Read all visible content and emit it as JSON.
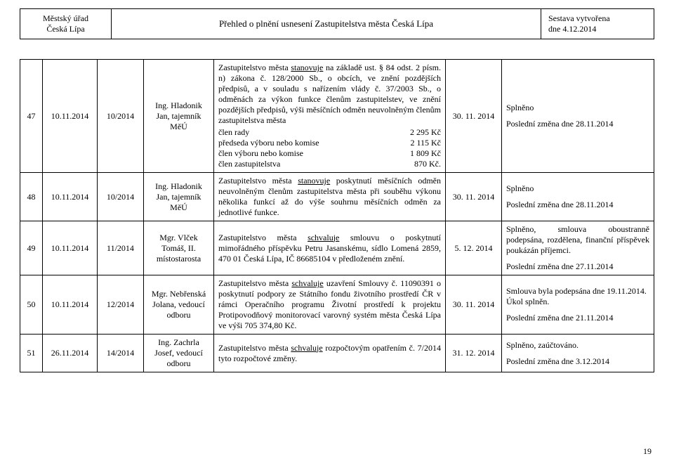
{
  "header": {
    "left_line1": "Městský úřad",
    "left_line2": "Česká Lípa",
    "center": "Přehled o plnění usnesení Zastupitelstva města Česká Lípa",
    "right_line1": "Sestava vytvořena",
    "right_line2": "dne 4.12.2014"
  },
  "page_number": "19",
  "rows": [
    {
      "num": "47",
      "date": "10.11.2014",
      "ref": "10/2014",
      "person": "Ing. Hladonik Jan, tajemník MěÚ",
      "desc": {
        "pre": "Zastupitelstvo města ",
        "u": "stanovuje",
        "post": " na základě ust. § 84 odst. 2 písm. n) zákona č. 128/2000 Sb., o obcích, ve znění pozdějších předpisů, a v souladu s nařízením vlády č. 37/2003 Sb., o odměnách za výkon funkce členům zastupitelstev, ve znění pozdějších předpisů, výši měsíčních odměn neuvolněným členům zastupitelstva města",
        "amounts": [
          {
            "lbl": "člen rady",
            "val": "2 295 Kč"
          },
          {
            "lbl": "předseda výboru nebo komise",
            "val": "2 115 Kč"
          },
          {
            "lbl": "člen výboru nebo komise",
            "val": "1 809 Kč"
          },
          {
            "lbl": "člen zastupitelstva",
            "val": "870 Kč."
          }
        ]
      },
      "term": "30. 11. 2014",
      "status_a": "Splněno",
      "status_b": "Poslední změna dne 28.11.2014"
    },
    {
      "num": "48",
      "date": "10.11.2014",
      "ref": "10/2014",
      "person": "Ing. Hladonik Jan, tajemník MěÚ",
      "desc": {
        "pre": "Zastupitelstvo města ",
        "u": "stanovuje",
        "post": " poskytnutí měsíčních odměn neuvolněným členům zastupitelstva města při souběhu výkonu několika funkcí až do výše souhrnu měsíčních odměn za jednotlivé funkce."
      },
      "term": "30. 11. 2014",
      "status_a": "Splněno",
      "status_b": "Poslední změna dne 28.11.2014"
    },
    {
      "num": "49",
      "date": "10.11.2014",
      "ref": "11/2014",
      "person": "Mgr. Vlček Tomáš, II. místostarosta",
      "desc": {
        "pre": "Zastupitelstvo města ",
        "u": "schvaluje",
        "post": " smlouvu o poskytnutí mimořádného příspěvku Petru Jasanskému, sídlo Lomená 2859, 470 01 Česká Lípa, IČ 86685104 v předloženém znění."
      },
      "term": "5. 12. 2014",
      "status_a": "Splněno, smlouva oboustranně podepsána, rozdělena, finanční příspěvek poukázán příjemci.",
      "status_b": "Poslední změna dne 27.11.2014"
    },
    {
      "num": "50",
      "date": "10.11.2014",
      "ref": "12/2014",
      "person": "Mgr. Nebřenská Jolana, vedoucí odboru",
      "desc": {
        "pre": "Zastupitelstvo města ",
        "u": "schvaluje",
        "post": " uzavření Smlouvy č. 11090391 o poskytnutí podpory ze Státního fondu životního prostředí ČR v rámci Operačního programu Životní prostředí k projektu Protipovodňový monitorovací varovný systém města Česká Lípa ve výši 705 374,80 Kč."
      },
      "term": "30. 11. 2014",
      "status_a": "Smlouva byla podepsána dne 19.11.2014.",
      "status_a2": "Úkol splněn.",
      "status_b": "Poslední změna dne 21.11.2014"
    },
    {
      "num": "51",
      "date": "26.11.2014",
      "ref": "14/2014",
      "person": "Ing. Zachrla Josef, vedoucí odboru",
      "desc": {
        "pre": "Zastupitelstvo města ",
        "u": "schvaluje",
        "post": " rozpočtovým opatřením č. 7/2014 tyto rozpočtové změny."
      },
      "term": "31. 12. 2014",
      "status_a": "Splněno, zaúčtováno.",
      "status_b": "Poslední změna dne 3.12.2014"
    }
  ]
}
